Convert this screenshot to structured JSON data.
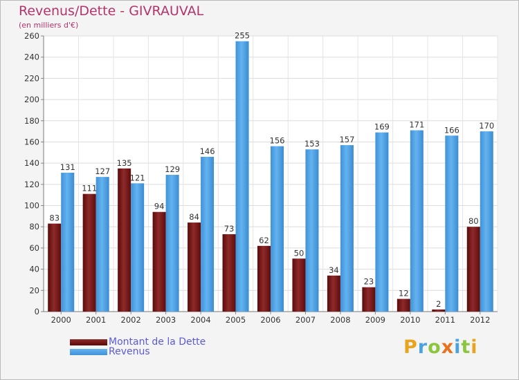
{
  "title": "Revenus/Dette - GIVRAUVAL",
  "subtitle": "(en milliers d'€)",
  "colors": {
    "dette": "#6e1414",
    "revenus": "#4ea2e6",
    "title": "#b3336b",
    "legend_text": "#5a5ad8"
  },
  "logo": {
    "text": "Proxiti",
    "letters": [
      {
        "ch": "P",
        "color": "#e8a41e"
      },
      {
        "ch": "r",
        "color": "#4aa3df"
      },
      {
        "ch": "o",
        "color": "#8cc63f"
      },
      {
        "ch": "x",
        "color": "#e8731e"
      },
      {
        "ch": "i",
        "color": "#4aa3df"
      },
      {
        "ch": "t",
        "color": "#8cc63f"
      },
      {
        "ch": "i",
        "color": "#e8a41e"
      }
    ]
  },
  "chart_data": {
    "type": "bar",
    "categories": [
      "2000",
      "2001",
      "2002",
      "2003",
      "2004",
      "2005",
      "2006",
      "2007",
      "2008",
      "2009",
      "2010",
      "2011",
      "2012"
    ],
    "series": [
      {
        "name": "Montant de la Dette",
        "values": [
          83,
          111,
          135,
          94,
          84,
          73,
          62,
          50,
          34,
          23,
          12,
          2,
          80
        ]
      },
      {
        "name": "Revenus",
        "values": [
          131,
          127,
          121,
          129,
          146,
          255,
          156,
          153,
          157,
          169,
          171,
          166,
          170
        ]
      }
    ],
    "ylim": [
      0,
      260
    ],
    "yticks": [
      0,
      20,
      40,
      60,
      80,
      100,
      120,
      140,
      160,
      180,
      200,
      220,
      240,
      260
    ],
    "grid": true,
    "legend_position": "bottom-left"
  }
}
